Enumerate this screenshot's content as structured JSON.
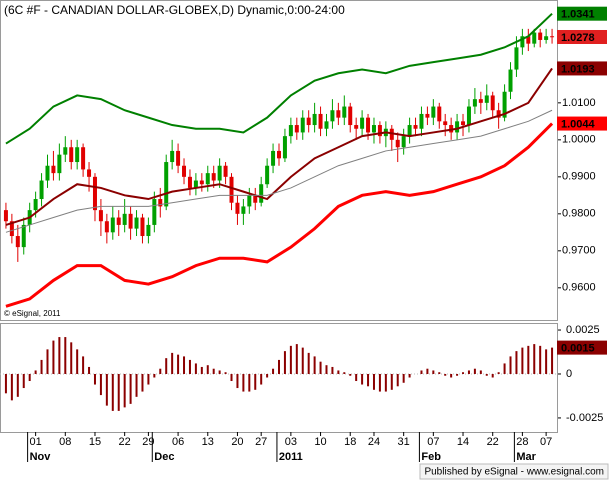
{
  "chart_data": [
    {
      "type": "candlestick",
      "title": "(6C #F - CANADIAN DOLLAR-GLOBEX,D) Dynamic,0:00-24:00",
      "note": "© eSignal, 2011",
      "xlim": [
        -1,
        93
      ],
      "ylim": [
        0.9513,
        1.0378
      ],
      "yticks": [
        {
          "value": 0.96,
          "label": "0.9600"
        },
        {
          "value": 0.97,
          "label": "0.9700"
        },
        {
          "value": 0.98,
          "label": "0.9800"
        },
        {
          "value": 0.99,
          "label": "0.9900"
        },
        {
          "value": 1.0,
          "label": "1.0000"
        },
        {
          "value": 1.01,
          "label": "1.0100"
        }
      ],
      "up_color": "#00a000",
      "down_color": "#e00000",
      "close_box_color": "#e02020",
      "open": [
        0.981,
        0.978,
        0.974,
        0.971,
        0.977,
        0.981,
        0.984,
        0.989,
        0.993,
        0.991,
        0.996,
        0.998,
        0.994,
        0.998,
        0.992,
        0.99,
        0.981,
        0.978,
        0.975,
        0.979,
        0.977,
        0.98,
        0.976,
        0.979,
        0.974,
        0.977,
        0.984,
        0.982,
        0.994,
        0.997,
        0.993,
        0.99,
        0.987,
        0.989,
        0.988,
        0.991,
        0.989,
        0.993,
        0.99,
        0.983,
        0.98,
        0.982,
        0.985,
        0.983,
        0.988,
        0.993,
        0.997,
        0.995,
        1.001,
        1.004,
        1.002,
        1.006,
        1.004,
        1.007,
        1.003,
        1.005,
        1.008,
        1.006,
        1.009,
        1.004,
        1.003,
        1.006,
        1.002,
        1.004,
        1.001,
        1.003,
        1.0,
        0.998,
        1.001,
        1.004,
        1.003,
        1.007,
        1.006,
        1.009,
        1.005,
        1.004,
        1.002,
        1.005,
        1.004,
        1.009,
        1.011,
        1.01,
        1.012,
        1.008,
        1.006,
        1.013,
        1.019,
        1.025,
        1.028,
        1.026,
        1.029,
        1.027,
        1.028
      ],
      "high": [
        0.983,
        0.98,
        0.977,
        0.979,
        0.983,
        0.986,
        0.991,
        0.996,
        0.997,
        0.999,
        1.001,
        1.0,
        1.0,
        0.999,
        0.994,
        0.991,
        0.984,
        0.98,
        0.982,
        0.981,
        0.984,
        0.982,
        0.981,
        0.98,
        0.979,
        0.986,
        0.987,
        0.996,
        1.0,
        0.999,
        0.995,
        0.992,
        0.991,
        0.991,
        0.993,
        0.993,
        0.995,
        0.994,
        0.991,
        0.985,
        0.984,
        0.987,
        0.987,
        0.99,
        0.995,
        0.999,
        0.999,
        1.003,
        1.006,
        1.006,
        1.008,
        1.008,
        1.01,
        1.009,
        1.007,
        1.011,
        1.01,
        1.012,
        1.01,
        1.006,
        1.008,
        1.007,
        1.006,
        1.005,
        1.005,
        1.004,
        1.002,
        1.003,
        1.006,
        1.006,
        1.009,
        1.009,
        1.011,
        1.01,
        1.007,
        1.006,
        1.007,
        1.007,
        1.011,
        1.014,
        1.013,
        1.015,
        1.013,
        1.01,
        1.015,
        1.021,
        1.028,
        1.03,
        1.03,
        1.03,
        1.03,
        1.03,
        1.03
      ],
      "low": [
        0.976,
        0.972,
        0.967,
        0.969,
        0.975,
        0.979,
        0.982,
        0.987,
        0.989,
        0.989,
        0.994,
        0.992,
        0.992,
        0.99,
        0.986,
        0.978,
        0.974,
        0.972,
        0.973,
        0.974,
        0.975,
        0.973,
        0.974,
        0.972,
        0.972,
        0.975,
        0.979,
        0.981,
        0.992,
        0.991,
        0.988,
        0.985,
        0.985,
        0.986,
        0.986,
        0.987,
        0.987,
        0.988,
        0.981,
        0.977,
        0.977,
        0.98,
        0.981,
        0.982,
        0.987,
        0.991,
        0.993,
        0.994,
        0.999,
        1.0,
        1.0,
        1.002,
        1.002,
        1.001,
        1.001,
        1.003,
        1.004,
        1.004,
        1.002,
        1.0,
        1.001,
        1.0,
        0.999,
        0.999,
        0.998,
        0.997,
        0.994,
        0.996,
        0.999,
        1.001,
        1.001,
        1.004,
        1.004,
        1.003,
        1.001,
        1.0,
        1.0,
        1.001,
        1.002,
        1.007,
        1.007,
        1.008,
        1.006,
        1.003,
        1.005,
        1.011,
        1.017,
        1.023,
        1.024,
        1.025,
        1.025,
        1.026,
        1.026
      ],
      "close": [
        0.978,
        0.974,
        0.971,
        0.977,
        0.981,
        0.984,
        0.989,
        0.993,
        0.991,
        0.996,
        0.998,
        0.994,
        0.998,
        0.992,
        0.99,
        0.981,
        0.978,
        0.975,
        0.979,
        0.977,
        0.98,
        0.976,
        0.979,
        0.974,
        0.977,
        0.984,
        0.982,
        0.994,
        0.997,
        0.993,
        0.99,
        0.987,
        0.989,
        0.988,
        0.991,
        0.989,
        0.993,
        0.99,
        0.983,
        0.98,
        0.982,
        0.985,
        0.983,
        0.988,
        0.993,
        0.997,
        0.995,
        1.001,
        1.004,
        1.002,
        1.006,
        1.004,
        1.007,
        1.003,
        1.005,
        1.008,
        1.006,
        1.009,
        1.004,
        1.003,
        1.006,
        1.002,
        1.004,
        1.001,
        1.003,
        1.0,
        0.998,
        1.001,
        1.004,
        1.003,
        1.007,
        1.006,
        1.009,
        1.005,
        1.004,
        1.002,
        1.005,
        1.004,
        1.009,
        1.011,
        1.01,
        1.012,
        1.008,
        1.006,
        1.013,
        1.019,
        1.025,
        1.028,
        1.026,
        1.029,
        1.027,
        1.028,
        1.0278
      ],
      "lines": [
        {
          "color": "#008000",
          "width": 2,
          "box": true,
          "x": [
            0,
            4,
            8,
            12,
            16,
            20,
            24,
            28,
            32,
            36,
            40,
            44,
            48,
            52,
            56,
            60,
            64,
            68,
            72,
            76,
            80,
            84,
            88,
            92
          ],
          "values": [
            0.999,
            1.003,
            1.009,
            1.012,
            1.011,
            1.008,
            1.006,
            1.004,
            1.003,
            1.003,
            1.002,
            1.006,
            1.012,
            1.016,
            1.018,
            1.019,
            1.018,
            1.02,
            1.021,
            1.022,
            1.023,
            1.025,
            1.028,
            1.0341
          ]
        },
        {
          "color": "#8b0000",
          "width": 2,
          "box": true,
          "x": [
            0,
            4,
            8,
            12,
            16,
            20,
            24,
            28,
            32,
            36,
            40,
            44,
            48,
            52,
            56,
            60,
            64,
            68,
            72,
            76,
            80,
            84,
            88,
            92
          ],
          "values": [
            0.977,
            0.979,
            0.984,
            0.988,
            0.987,
            0.985,
            0.984,
            0.986,
            0.987,
            0.988,
            0.986,
            0.984,
            0.99,
            0.995,
            0.998,
            1.001,
            1.002,
            1.001,
            1.002,
            1.003,
            1.005,
            1.007,
            1.01,
            1.0193
          ]
        },
        {
          "color": "#808080",
          "width": 1,
          "box": false,
          "x": [
            0,
            4,
            8,
            12,
            16,
            20,
            24,
            28,
            32,
            36,
            40,
            44,
            48,
            52,
            56,
            60,
            64,
            68,
            72,
            76,
            80,
            84,
            88,
            92
          ],
          "values": [
            0.975,
            0.977,
            0.979,
            0.981,
            0.982,
            0.982,
            0.982,
            0.983,
            0.984,
            0.985,
            0.985,
            0.985,
            0.987,
            0.99,
            0.993,
            0.995,
            0.997,
            0.998,
            0.999,
            1.0,
            1.001,
            1.003,
            1.005,
            1.008
          ]
        },
        {
          "color": "#ff0000",
          "width": 3,
          "box": true,
          "x": [
            0,
            4,
            8,
            12,
            16,
            20,
            24,
            28,
            32,
            36,
            40,
            44,
            48,
            52,
            56,
            60,
            64,
            68,
            72,
            76,
            80,
            84,
            88,
            92
          ],
          "values": [
            0.955,
            0.957,
            0.962,
            0.966,
            0.966,
            0.962,
            0.961,
            0.963,
            0.966,
            0.968,
            0.968,
            0.967,
            0.971,
            0.976,
            0.982,
            0.985,
            0.986,
            0.985,
            0.986,
            0.988,
            0.99,
            0.993,
            0.998,
            1.0044
          ]
        }
      ]
    },
    {
      "type": "bar",
      "color": "#8b0000",
      "xlim": [
        -1,
        93
      ],
      "ylim": [
        -0.0033,
        0.0029
      ],
      "yticks": [
        0.0025,
        0,
        -0.0025
      ],
      "values": [
        -0.0011,
        -0.0015,
        -0.0013,
        -0.0008,
        -0.0004,
        0.0002,
        0.0008,
        0.0014,
        0.0019,
        0.0021,
        0.0021,
        0.0018,
        0.0014,
        0.001,
        0.0004,
        -0.0006,
        -0.0012,
        -0.0018,
        -0.0021,
        -0.0021,
        -0.0019,
        -0.0017,
        -0.0013,
        -0.001,
        -0.0006,
        -0.0002,
        0.0003,
        0.0009,
        0.0012,
        0.0011,
        0.001,
        0.0008,
        0.0006,
        0.0004,
        0.0005,
        0.0003,
        0.0002,
        0.0001,
        -0.0004,
        -0.0008,
        -0.001,
        -0.001,
        -0.0009,
        -0.0006,
        -0.0002,
        0.0003,
        0.0008,
        0.0013,
        0.0016,
        0.0017,
        0.0015,
        0.0012,
        0.001,
        0.0007,
        0.0005,
        0.0004,
        0.0002,
        0.0001,
        -0.0001,
        -0.0004,
        -0.0006,
        -0.0007,
        -0.0009,
        -0.001,
        -0.001,
        -0.0009,
        -0.0007,
        -0.0005,
        -0.0002,
        0,
        0.0002,
        0.0003,
        0.0002,
        0.0001,
        -0.0001,
        -0.0002,
        -0.0001,
        0.0001,
        0.0002,
        0.0003,
        0.0002,
        -0.0001,
        -0.0002,
        0.0001,
        0.0006,
        0.001,
        0.0013,
        0.0015,
        0.0016,
        0.0017,
        0.0016,
        0.0014,
        0.0015
      ],
      "xticks": [
        {
          "value": 5,
          "label": "01"
        },
        {
          "value": 10,
          "label": "08"
        },
        {
          "value": 15,
          "label": "15"
        },
        {
          "value": 20,
          "label": "22"
        },
        {
          "value": 24,
          "label": "29"
        },
        {
          "value": 29,
          "label": "06"
        },
        {
          "value": 34,
          "label": "13"
        },
        {
          "value": 39,
          "label": "20"
        },
        {
          "value": 43,
          "label": "27"
        },
        {
          "value": 48,
          "label": "03"
        },
        {
          "value": 53,
          "label": "10"
        },
        {
          "value": 58,
          "label": "18"
        },
        {
          "value": 62,
          "label": "24"
        },
        {
          "value": 67,
          "label": "31"
        },
        {
          "value": 72,
          "label": "07"
        },
        {
          "value": 77,
          "label": "14"
        },
        {
          "value": 82,
          "label": "22"
        },
        {
          "value": 87,
          "label": "28"
        },
        {
          "value": 91,
          "label": "07"
        }
      ],
      "period_labels": [
        {
          "value": 5,
          "label": "Nov"
        },
        {
          "value": 26,
          "label": "Dec"
        },
        {
          "value": 47,
          "label": "2011"
        },
        {
          "value": 71,
          "label": "Feb"
        },
        {
          "value": 87,
          "label": "Mar"
        }
      ]
    }
  ],
  "footer": "Published by eSignal - www.esignal.com"
}
